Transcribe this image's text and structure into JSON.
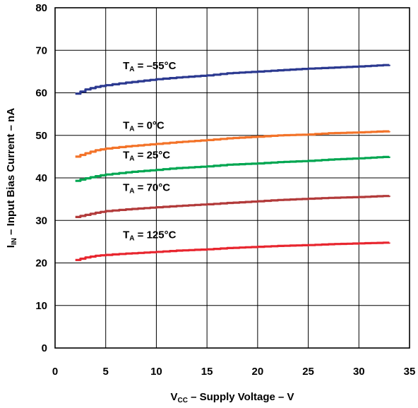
{
  "chart_data": {
    "type": "line",
    "xlabel": {
      "main": "V",
      "sub": "CC",
      "rest": " – Supply Voltage – V"
    },
    "ylabel": {
      "main": "I",
      "sub": "IN",
      "rest": " – Input Bias Current – nA"
    },
    "xlim": [
      0,
      35
    ],
    "ylim": [
      0,
      80
    ],
    "x_ticks": [
      "0",
      "5",
      "10",
      "15",
      "20",
      "25",
      "30",
      "35"
    ],
    "y_ticks": [
      "0",
      "10",
      "20",
      "30",
      "40",
      "50",
      "60",
      "70",
      "80"
    ],
    "grid": true,
    "x": [
      2,
      3,
      4,
      5,
      7,
      10,
      12,
      15,
      17,
      20,
      22,
      25,
      27,
      30,
      33
    ],
    "series": [
      {
        "name": "T_A = −55°C",
        "color": "#2b3990",
        "values": [
          59.8,
          60.8,
          61.4,
          61.8,
          62.4,
          63.2,
          63.6,
          64.1,
          64.6,
          65.0,
          65.3,
          65.7,
          65.9,
          66.2,
          66.6
        ]
      },
      {
        "name": "T_A = 0°C",
        "color": "#f37329",
        "values": [
          45.0,
          45.8,
          46.5,
          46.9,
          47.4,
          48.0,
          48.4,
          48.9,
          49.3,
          49.7,
          50.0,
          50.2,
          50.5,
          50.7,
          51.0
        ]
      },
      {
        "name": "T_A = 25°C",
        "color": "#00a651",
        "values": [
          39.3,
          39.9,
          40.4,
          40.8,
          41.3,
          41.9,
          42.3,
          42.7,
          43.1,
          43.4,
          43.7,
          44.0,
          44.3,
          44.6,
          45.0
        ]
      },
      {
        "name": "T_A = 70°C",
        "color": "#b23a3a",
        "values": [
          30.8,
          31.3,
          31.8,
          32.2,
          32.6,
          33.1,
          33.4,
          33.8,
          34.1,
          34.5,
          34.8,
          35.1,
          35.3,
          35.5,
          35.8
        ]
      },
      {
        "name": "T_A = 125°C",
        "color": "#e8262f",
        "values": [
          20.7,
          21.3,
          21.7,
          21.9,
          22.2,
          22.6,
          22.9,
          23.2,
          23.5,
          23.8,
          24.0,
          24.2,
          24.4,
          24.6,
          24.8
        ]
      }
    ],
    "annotations": [
      {
        "main": "T",
        "sub": "A",
        "rest": " = –55°C",
        "x": 6.7,
        "y": 65.6
      },
      {
        "main": "T",
        "sub": "A",
        "rest": " = 0°C",
        "x": 6.7,
        "y": 51.5
      },
      {
        "main": "T",
        "sub": "A",
        "rest": " = 25°C",
        "x": 6.7,
        "y": 44.6
      },
      {
        "main": "T",
        "sub": "A",
        "rest": " = 70°C",
        "x": 6.7,
        "y": 36.9
      },
      {
        "main": "T",
        "sub": "A",
        "rest": " = 125°C",
        "x": 6.7,
        "y": 25.8
      }
    ]
  }
}
